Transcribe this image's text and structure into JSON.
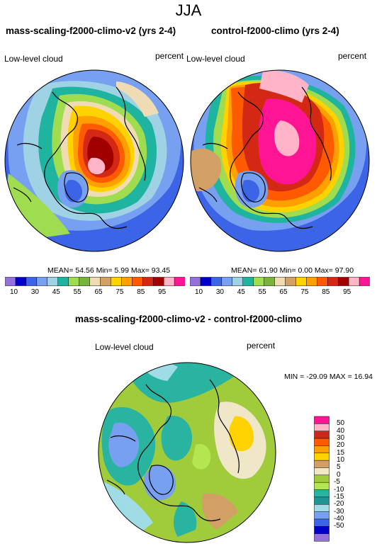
{
  "title": "JJA",
  "panels": [
    {
      "title": "mass-scaling-f2000-climo-v2 (yrs 2-4)",
      "left_label": "Low-level cloud",
      "right_label": "percent",
      "stats": "MEAN=  54.56  Min=   5.99  Max=  93.45"
    },
    {
      "title": "control-f2000-climo (yrs 2-4)",
      "left_label": "Low-level cloud",
      "right_label": "percent",
      "stats": "MEAN=  61.90  Min=   0.00  Max=  97.90"
    }
  ],
  "colorbar": {
    "labels": [
      "10",
      "30",
      "45",
      "55",
      "65",
      "75",
      "85",
      "95"
    ],
    "colors": [
      "#9370db",
      "#0000c8",
      "#3c64e6",
      "#78a0f0",
      "#a0d2e6",
      "#1eb4a0",
      "#a0dc50",
      "#78b43c",
      "#f0dcb4",
      "#d2a064",
      "#ffd200",
      "#ffa000",
      "#ff5a00",
      "#d22814",
      "#a00000",
      "#ffb4c8",
      "#ff1493"
    ]
  },
  "diff": {
    "title": "mass-scaling-f2000-climo-v2 - control-f2000-climo",
    "left_label": "Low-level cloud",
    "right_label": "percent",
    "minmax": "MIN = -29.09 MAX =  16.94",
    "legend_labels": [
      "50",
      "40",
      "30",
      "20",
      "15",
      "10",
      "5",
      "0",
      "-5",
      "-10",
      "-15",
      "-20",
      "-30",
      "-40",
      "-50"
    ],
    "legend_colors": [
      "#ff1493",
      "#ffb4c8",
      "#c8281e",
      "#ff5a00",
      "#ffa000",
      "#ffd200",
      "#d2a064",
      "#f0e6c8",
      "#a0cc3c",
      "#b4e650",
      "#28b4a0",
      "#1e9696",
      "#a0dce6",
      "#78a0f0",
      "#3c64e6",
      "#0000c8",
      "#9370db"
    ]
  }
}
